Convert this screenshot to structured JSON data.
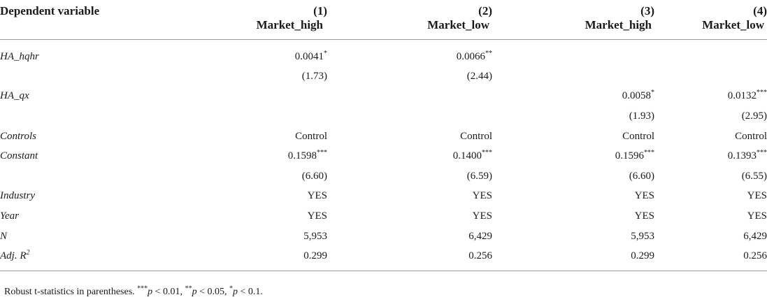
{
  "header": {
    "dependent_variable": "Dependent variable",
    "columns": [
      {
        "number": "(1)",
        "name": "Market_high"
      },
      {
        "number": "(2)",
        "name": "Market_low"
      },
      {
        "number": "(3)",
        "name": "Market_high"
      },
      {
        "number": "(4)",
        "name": "Market_low"
      }
    ]
  },
  "rows": [
    {
      "label": "HA_hqhr",
      "cells": [
        {
          "v": "0.0041",
          "s": "*"
        },
        {
          "v": "0.0066",
          "s": "**"
        },
        {
          "v": "",
          "s": ""
        },
        {
          "v": "",
          "s": ""
        }
      ]
    },
    {
      "label": "",
      "cells": [
        {
          "v": "(1.73)",
          "s": ""
        },
        {
          "v": "(2.44)",
          "s": ""
        },
        {
          "v": "",
          "s": ""
        },
        {
          "v": "",
          "s": ""
        }
      ]
    },
    {
      "label": "HA_qx",
      "cells": [
        {
          "v": "",
          "s": ""
        },
        {
          "v": "",
          "s": ""
        },
        {
          "v": "0.0058",
          "s": "*"
        },
        {
          "v": "0.0132",
          "s": "***"
        }
      ]
    },
    {
      "label": "",
      "cells": [
        {
          "v": "",
          "s": ""
        },
        {
          "v": "",
          "s": ""
        },
        {
          "v": "(1.93)",
          "s": ""
        },
        {
          "v": "(2.95)",
          "s": ""
        }
      ]
    },
    {
      "label": "Controls",
      "cells": [
        {
          "v": "Control",
          "s": ""
        },
        {
          "v": "Control",
          "s": ""
        },
        {
          "v": "Control",
          "s": ""
        },
        {
          "v": "Control",
          "s": ""
        }
      ]
    },
    {
      "label": "Constant",
      "cells": [
        {
          "v": "0.1598",
          "s": "***"
        },
        {
          "v": "0.1400",
          "s": "***"
        },
        {
          "v": "0.1596",
          "s": "***"
        },
        {
          "v": "0.1393",
          "s": "***"
        }
      ]
    },
    {
      "label": "",
      "cells": [
        {
          "v": "(6.60)",
          "s": ""
        },
        {
          "v": "(6.59)",
          "s": ""
        },
        {
          "v": "(6.60)",
          "s": ""
        },
        {
          "v": "(6.55)",
          "s": ""
        }
      ]
    },
    {
      "label": "Industry",
      "cells": [
        {
          "v": "YES",
          "s": ""
        },
        {
          "v": "YES",
          "s": ""
        },
        {
          "v": "YES",
          "s": ""
        },
        {
          "v": "YES",
          "s": ""
        }
      ]
    },
    {
      "label": "Year",
      "cells": [
        {
          "v": "YES",
          "s": ""
        },
        {
          "v": "YES",
          "s": ""
        },
        {
          "v": "YES",
          "s": ""
        },
        {
          "v": "YES",
          "s": ""
        }
      ]
    },
    {
      "label": "N",
      "cells": [
        {
          "v": "5,953",
          "s": ""
        },
        {
          "v": "6,429",
          "s": ""
        },
        {
          "v": "5,953",
          "s": ""
        },
        {
          "v": "6,429",
          "s": ""
        }
      ]
    },
    {
      "label": "Adj. R",
      "label_sup": "2",
      "cells": [
        {
          "v": "0.299",
          "s": ""
        },
        {
          "v": "0.256",
          "s": ""
        },
        {
          "v": "0.299",
          "s": ""
        },
        {
          "v": "0.256",
          "s": ""
        }
      ]
    }
  ],
  "note": {
    "lead": "Robust t-statistics in parentheses. ",
    "items": [
      {
        "stars": "***",
        "var": "p",
        "rest": " < 0.01, "
      },
      {
        "stars": "**",
        "var": "p",
        "rest": " < 0.05, "
      },
      {
        "stars": "*",
        "var": "p",
        "rest": " < 0.1."
      }
    ]
  }
}
